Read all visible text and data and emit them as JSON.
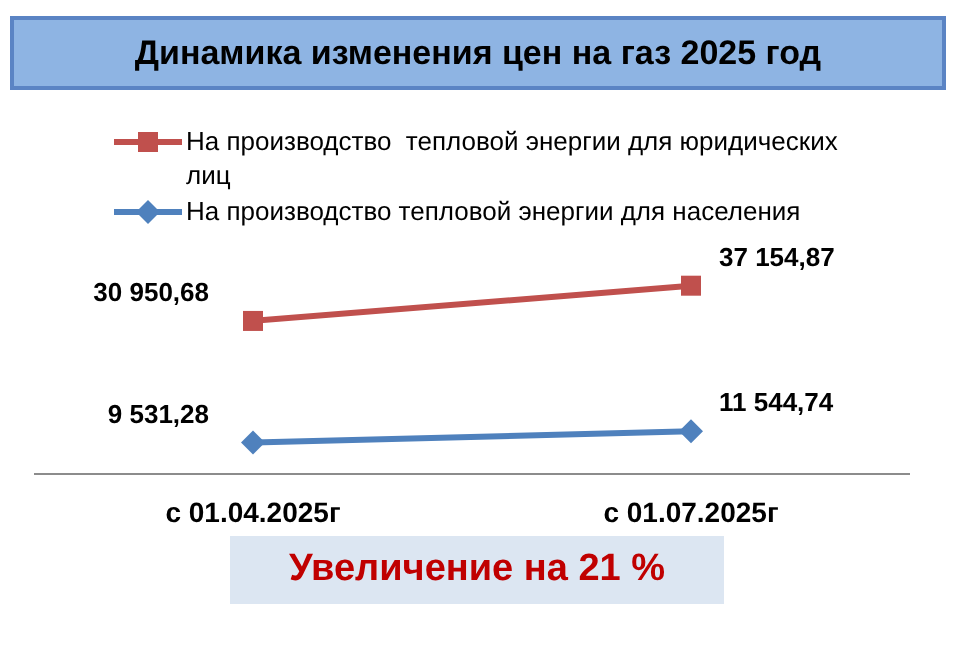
{
  "chart_data": {
    "type": "line",
    "title": "Динамика изменения цен на газ 2025 год",
    "categories": [
      "с 01.04.2025г",
      "с 01.07.2025г"
    ],
    "series": [
      {
        "name": "На производство  тепловой энергии для юридических лиц",
        "color": "#c0504d",
        "marker": "square",
        "values": [
          30950.68,
          37154.87
        ],
        "value_labels": [
          "30 950,68",
          "37 154,87"
        ]
      },
      {
        "name": "На производство тепловой энергии для населения",
        "color": "#4f81bd",
        "marker": "diamond",
        "values": [
          9531.28,
          11544.74
        ],
        "value_labels": [
          "9 531,28",
          "11 544,74"
        ]
      }
    ],
    "legend": "top",
    "grid": false,
    "tick_labels": "x",
    "annotations": [
      "Увеличение на 21 %"
    ]
  }
}
